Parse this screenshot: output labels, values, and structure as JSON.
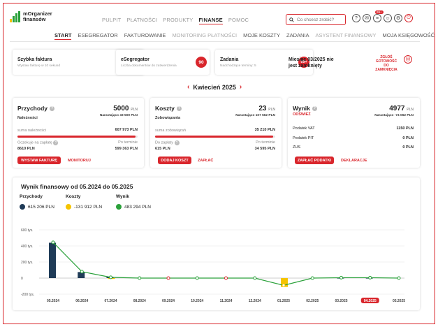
{
  "brand": {
    "line1": "mOrganizer",
    "line2": "finansów"
  },
  "topnav": [
    "PULPIT",
    "PŁATNOŚCI",
    "PRODUKTY",
    "FINANSE",
    "POMOC"
  ],
  "search": {
    "placeholder": "Co chcesz zrobić?"
  },
  "header_badge": "99+",
  "subnav": [
    "START",
    "ESEGREGATOR",
    "FAKTUROWANIE",
    "MONITORING PŁATNOŚCI",
    "MOJE KOSZTY",
    "ZADANIA",
    "ASYSTENT FINANSOWY",
    "MOJA KSIĘGOWOŚĆ"
  ],
  "quick": {
    "faktura": {
      "title": "Szybka faktura",
      "sub": "Wystaw fakturę w 10 sekund"
    },
    "esegregator": {
      "title": "eSegregator",
      "sub": "Liczba dokumentów do zatwierdzenia",
      "count": "90"
    },
    "zadania": {
      "title": "Zadania",
      "sub": "Nadchodzące terminy: 5",
      "count": "99+"
    },
    "miesiac": {
      "title": "Miesiąc 03/2025 nie jest zamknięty",
      "action": "ZGŁOŚ GOTOWOŚĆ DO ZAMKNIĘCIA"
    }
  },
  "period": "Kwiecień 2025",
  "przychody": {
    "title": "Przychody",
    "value": "5000",
    "unit": "PLN",
    "narastajaco": "Narastająco 33 500 PLN",
    "sub": "Należności",
    "suma_label": "suma należności",
    "suma_value": "607 973 PLN",
    "bar_fraction": 0.985,
    "l_label": "Oczekuje na zapłatę",
    "l_value": "8610 PLN",
    "r_label": "Po terminie",
    "r_value": "599 363 PLN",
    "btn": "WYSTAW FAKTURĘ",
    "link": "MONITORUJ"
  },
  "koszty": {
    "title": "Koszty",
    "value": "23",
    "unit": "PLN",
    "narastajaco": "Narastająco 107 562 PLN",
    "sub": "Zobowiązania",
    "suma_label": "suma zobowiązań",
    "suma_value": "35 210 PLN",
    "bar_fraction": 0.983,
    "l_label": "Do zapłaty",
    "l_value": "615 PLN",
    "r_label": "Po terminie",
    "r_value": "34 595 PLN",
    "btn": "DODAJ KOSZT",
    "link": "ZAPŁAĆ"
  },
  "wynik": {
    "title": "Wynik",
    "value": "4977",
    "unit": "PLN",
    "narastajaco": "Narastająco -74 062 PLN",
    "refresh": "ODŚWIEŻ",
    "rows": [
      {
        "label": "Podatek VAT",
        "value": "1150 PLN"
      },
      {
        "label": "Podatek PIT",
        "value": "0 PLN"
      },
      {
        "label": "ZUS",
        "value": "0 PLN"
      }
    ],
    "btn": "ZAPŁAĆ PODATKI",
    "link": "DEKLARACJE"
  },
  "chart_data": {
    "type": "bar",
    "title": "Wynik finansowy od 05.2024 do 05.2025",
    "categories": [
      "05.2024",
      "06.2024",
      "07.2024",
      "08.2024",
      "09.2024",
      "10.2024",
      "11.2024",
      "12.2024",
      "01.2025",
      "02.2025",
      "03.2025",
      "04.2025",
      "05.2025"
    ],
    "selected_category": "04.2025",
    "yticks": [
      "600 tys.",
      "400 tys.",
      "200 tys.",
      "0",
      "-200 tys."
    ],
    "ylim": [
      -200000,
      600000
    ],
    "series": [
      {
        "name": "Przychody",
        "total": "615 206 PLN",
        "color": "#1f3b57",
        "values": [
          440000,
          75000,
          15000,
          0,
          0,
          0,
          0,
          0,
          0,
          0,
          5000,
          5000,
          0
        ]
      },
      {
        "name": "Koszty",
        "total": "-131 912 PLN",
        "color": "#f5c400",
        "values": [
          0,
          0,
          -5000,
          0,
          0,
          0,
          0,
          0,
          -110000,
          0,
          0,
          0,
          0
        ]
      },
      {
        "name": "Wynik",
        "total": "483 294 PLN",
        "color": "#2aa13a",
        "values": [
          445000,
          80000,
          10000,
          0,
          0,
          0,
          0,
          0,
          -90000,
          0,
          5000,
          5000,
          0
        ]
      }
    ],
    "point_colors": [
      "#2aa13a",
      "#2aa13a",
      "#2aa13a",
      "#2aa13a",
      "#d9262c",
      "#2aa13a",
      "#d9262c",
      "#2aa13a",
      "#f5c400",
      "#2aa13a",
      "#2aa13a",
      "#2aa13a",
      "#2aa13a"
    ],
    "grid": true,
    "legend": "top-left"
  }
}
